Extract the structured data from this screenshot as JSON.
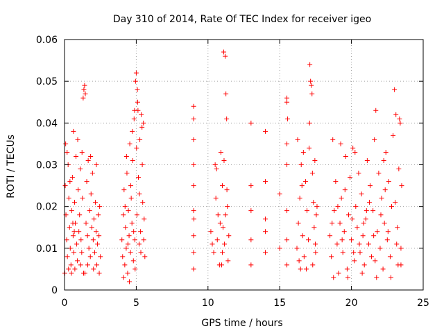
{
  "chart_data": {
    "type": "scatter",
    "title": "Day 310 of 2014, Rate Of TEC Index for receiver igeo",
    "xlabel": "GPS time / hours",
    "ylabel": "ROTI / TECUs",
    "xlim": [
      0,
      25
    ],
    "ylim": [
      0,
      0.06
    ],
    "x_ticks": [
      0,
      5,
      10,
      15,
      20,
      25
    ],
    "x_tick_labels": [
      "0",
      "5",
      "10",
      "15",
      "20",
      "25"
    ],
    "y_ticks": [
      0,
      0.01,
      0.02,
      0.03,
      0.04,
      0.05,
      0.06
    ],
    "y_tick_labels": [
      "0",
      "0.01",
      "0.02",
      "0.03",
      "0.04",
      "0.05",
      "0.06"
    ],
    "grid": true,
    "marker": "+",
    "marker_color": "#ff0000",
    "series": [
      {
        "name": "ROTI",
        "points": [
          [
            0.05,
            0.025
          ],
          [
            0.1,
            0.018
          ],
          [
            0.15,
            0.012
          ],
          [
            0.2,
            0.008
          ],
          [
            0.25,
            0.03
          ],
          [
            0.3,
            0.022
          ],
          [
            0.35,
            0.015
          ],
          [
            0.4,
            0.01
          ],
          [
            0.45,
            0.006
          ],
          [
            0.5,
            0.019
          ],
          [
            0.55,
            0.027
          ],
          [
            0.6,
            0.013
          ],
          [
            0.65,
            0.009
          ],
          [
            0.7,
            0.021
          ],
          [
            0.75,
            0.016
          ],
          [
            0.8,
            0.032
          ],
          [
            0.85,
            0.011
          ],
          [
            0.9,
            0.007
          ],
          [
            0.95,
            0.024
          ],
          [
            1.0,
            0.014
          ],
          [
            1.05,
            0.018
          ],
          [
            1.1,
            0.029
          ],
          [
            1.15,
            0.012
          ],
          [
            1.2,
            0.009
          ],
          [
            1.25,
            0.022
          ],
          [
            1.3,
            0.046
          ],
          [
            1.35,
            0.048
          ],
          [
            1.4,
            0.049
          ],
          [
            1.45,
            0.047
          ],
          [
            1.5,
            0.016
          ],
          [
            1.55,
            0.026
          ],
          [
            1.6,
            0.013
          ],
          [
            1.65,
            0.031
          ],
          [
            1.7,
            0.01
          ],
          [
            1.75,
            0.019
          ],
          [
            1.8,
            0.008
          ],
          [
            1.85,
            0.023
          ],
          [
            1.9,
            0.015
          ],
          [
            1.95,
            0.028
          ],
          [
            2.0,
            0.012
          ],
          [
            2.05,
            0.017
          ],
          [
            2.1,
            0.009
          ],
          [
            2.15,
            0.021
          ],
          [
            2.2,
            0.014
          ],
          [
            2.25,
            0.006
          ],
          [
            2.3,
            0.011
          ],
          [
            2.35,
            0.018
          ],
          [
            2.4,
            0.013
          ],
          [
            2.45,
            0.02
          ],
          [
            2.5,
            0.008
          ],
          [
            0.02,
            0.004
          ],
          [
            0.08,
            0.035
          ],
          [
            0.18,
            0.033
          ],
          [
            0.28,
            0.005
          ],
          [
            0.38,
            0.026
          ],
          [
            0.48,
            0.004
          ],
          [
            0.62,
            0.038
          ],
          [
            0.72,
            0.005
          ],
          [
            0.92,
            0.036
          ],
          [
            1.12,
            0.006
          ],
          [
            1.22,
            0.033
          ],
          [
            1.42,
            0.004
          ],
          [
            1.62,
            0.006
          ],
          [
            1.82,
            0.032
          ],
          [
            2.02,
            0.005
          ],
          [
            2.22,
            0.03
          ],
          [
            2.42,
            0.004
          ],
          [
            1.33,
            0.004
          ],
          [
            0.58,
            0.016
          ],
          [
            0.68,
            0.014
          ],
          [
            4.0,
            0.012
          ],
          [
            4.05,
            0.008
          ],
          [
            4.1,
            0.018
          ],
          [
            4.15,
            0.024
          ],
          [
            4.2,
            0.006
          ],
          [
            4.25,
            0.015
          ],
          [
            4.3,
            0.01
          ],
          [
            4.35,
            0.028
          ],
          [
            4.4,
            0.004
          ],
          [
            4.45,
            0.019
          ],
          [
            4.5,
            0.013
          ],
          [
            4.55,
            0.035
          ],
          [
            4.6,
            0.009
          ],
          [
            4.65,
            0.022
          ],
          [
            4.7,
            0.016
          ],
          [
            4.75,
            0.031
          ],
          [
            4.8,
            0.007
          ],
          [
            4.85,
            0.041
          ],
          [
            4.9,
            0.012
          ],
          [
            4.95,
            0.05
          ],
          [
            5.0,
            0.052
          ],
          [
            5.05,
            0.018
          ],
          [
            5.1,
            0.045
          ],
          [
            5.15,
            0.027
          ],
          [
            5.2,
            0.011
          ],
          [
            5.25,
            0.036
          ],
          [
            5.3,
            0.014
          ],
          [
            5.35,
            0.042
          ],
          [
            5.4,
            0.039
          ],
          [
            5.45,
            0.021
          ],
          [
            5.5,
            0.04
          ],
          [
            5.55,
            0.017
          ],
          [
            5.6,
            0.008
          ],
          [
            4.12,
            0.003
          ],
          [
            4.32,
            0.032
          ],
          [
            4.52,
            0.002
          ],
          [
            4.72,
            0.038
          ],
          [
            4.92,
            0.005
          ],
          [
            5.12,
            0.043
          ],
          [
            5.32,
            0.009
          ],
          [
            4.22,
            0.02
          ],
          [
            4.42,
            0.011
          ],
          [
            4.62,
            0.025
          ],
          [
            4.82,
            0.014
          ],
          [
            5.02,
            0.034
          ],
          [
            5.22,
            0.023
          ],
          [
            5.42,
            0.03
          ],
          [
            5.52,
            0.012
          ],
          [
            4.88,
            0.043
          ],
          [
            5.08,
            0.048
          ],
          [
            9.0,
            0.044
          ],
          [
            9.0,
            0.041
          ],
          [
            9.0,
            0.036
          ],
          [
            9.0,
            0.03
          ],
          [
            9.0,
            0.025
          ],
          [
            9.0,
            0.019
          ],
          [
            9.0,
            0.013
          ],
          [
            9.0,
            0.009
          ],
          [
            9.0,
            0.005
          ],
          [
            9.02,
            0.017
          ],
          [
            10.2,
            0.014
          ],
          [
            10.3,
            0.011
          ],
          [
            10.4,
            0.009
          ],
          [
            10.5,
            0.03
          ],
          [
            10.6,
            0.029
          ],
          [
            10.7,
            0.018
          ],
          [
            10.8,
            0.006
          ],
          [
            10.9,
            0.033
          ],
          [
            11.0,
            0.025
          ],
          [
            11.05,
            0.015
          ],
          [
            11.1,
            0.057
          ],
          [
            11.15,
            0.011
          ],
          [
            11.2,
            0.056
          ],
          [
            11.25,
            0.047
          ],
          [
            11.3,
            0.041
          ],
          [
            11.35,
            0.02
          ],
          [
            11.4,
            0.007
          ],
          [
            11.45,
            0.013
          ],
          [
            10.55,
            0.022
          ],
          [
            10.95,
            0.006
          ],
          [
            11.12,
            0.031
          ],
          [
            11.22,
            0.018
          ],
          [
            11.32,
            0.024
          ],
          [
            10.65,
            0.012
          ],
          [
            10.85,
            0.016
          ],
          [
            11.0,
            0.009
          ],
          [
            13.0,
            0.04
          ],
          [
            13.0,
            0.025
          ],
          [
            13.0,
            0.019
          ],
          [
            13.0,
            0.012
          ],
          [
            13.0,
            0.006
          ],
          [
            14.0,
            0.038
          ],
          [
            14.0,
            0.026
          ],
          [
            14.0,
            0.017
          ],
          [
            14.0,
            0.009
          ],
          [
            14.0,
            0.014
          ],
          [
            15.0,
            0.023
          ],
          [
            15.0,
            0.01
          ],
          [
            15.5,
            0.046
          ],
          [
            15.5,
            0.045
          ],
          [
            15.55,
            0.041
          ],
          [
            15.5,
            0.035
          ],
          [
            15.5,
            0.03
          ],
          [
            15.5,
            0.019
          ],
          [
            15.5,
            0.012
          ],
          [
            15.5,
            0.006
          ],
          [
            16.2,
            0.01
          ],
          [
            16.3,
            0.016
          ],
          [
            16.4,
            0.022
          ],
          [
            16.5,
            0.03
          ],
          [
            16.6,
            0.013
          ],
          [
            16.7,
            0.008
          ],
          [
            16.8,
            0.026
          ],
          [
            16.9,
            0.019
          ],
          [
            17.0,
            0.012
          ],
          [
            17.05,
            0.034
          ],
          [
            17.1,
            0.054
          ],
          [
            17.15,
            0.05
          ],
          [
            17.2,
            0.049
          ],
          [
            17.25,
            0.047
          ],
          [
            17.3,
            0.006
          ],
          [
            17.35,
            0.021
          ],
          [
            17.4,
            0.015
          ],
          [
            17.45,
            0.031
          ],
          [
            17.5,
            0.009
          ],
          [
            17.55,
            0.018
          ],
          [
            16.25,
            0.036
          ],
          [
            16.45,
            0.005
          ],
          [
            16.65,
            0.033
          ],
          [
            16.85,
            0.005
          ],
          [
            17.08,
            0.04
          ],
          [
            17.28,
            0.028
          ],
          [
            17.48,
            0.011
          ],
          [
            17.6,
            0.02
          ],
          [
            16.35,
            0.007
          ],
          [
            16.55,
            0.025
          ],
          [
            18.5,
            0.013
          ],
          [
            18.6,
            0.008
          ],
          [
            18.7,
            0.036
          ],
          [
            18.8,
            0.019
          ],
          [
            18.9,
            0.026
          ],
          [
            19.0,
            0.011
          ],
          [
            19.1,
            0.004
          ],
          [
            19.2,
            0.016
          ],
          [
            19.3,
            0.022
          ],
          [
            19.4,
            0.009
          ],
          [
            19.5,
            0.014
          ],
          [
            19.6,
            0.032
          ],
          [
            19.7,
            0.005
          ],
          [
            19.8,
            0.018
          ],
          [
            19.9,
            0.027
          ],
          [
            20.0,
            0.012
          ],
          [
            20.1,
            0.034
          ],
          [
            20.2,
            0.007
          ],
          [
            20.3,
            0.02
          ],
          [
            20.4,
            0.015
          ],
          [
            20.5,
            0.028
          ],
          [
            20.6,
            0.009
          ],
          [
            20.7,
            0.023
          ],
          [
            20.8,
            0.013
          ],
          [
            20.9,
            0.006
          ],
          [
            21.0,
            0.017
          ],
          [
            21.1,
            0.031
          ],
          [
            21.2,
            0.011
          ],
          [
            21.3,
            0.025
          ],
          [
            21.4,
            0.008
          ],
          [
            21.5,
            0.019
          ],
          [
            21.6,
            0.036
          ],
          [
            21.7,
            0.043
          ],
          [
            21.8,
            0.014
          ],
          [
            21.9,
            0.028
          ],
          [
            22.0,
            0.01
          ],
          [
            22.1,
            0.022
          ],
          [
            22.2,
            0.005
          ],
          [
            22.3,
            0.016
          ],
          [
            22.4,
            0.033
          ],
          [
            22.5,
            0.012
          ],
          [
            22.6,
            0.026
          ],
          [
            22.7,
            0.008
          ],
          [
            22.8,
            0.02
          ],
          [
            22.9,
            0.037
          ],
          [
            23.0,
            0.048
          ],
          [
            23.1,
            0.042
          ],
          [
            23.2,
            0.015
          ],
          [
            23.3,
            0.029
          ],
          [
            23.35,
            0.041
          ],
          [
            23.4,
            0.04
          ],
          [
            23.45,
            0.01
          ],
          [
            23.5,
            0.025
          ],
          [
            18.75,
            0.003
          ],
          [
            19.25,
            0.035
          ],
          [
            19.75,
            0.003
          ],
          [
            20.25,
            0.033
          ],
          [
            20.75,
            0.004
          ],
          [
            21.25,
            0.021
          ],
          [
            21.75,
            0.003
          ],
          [
            22.25,
            0.031
          ],
          [
            22.75,
            0.003
          ],
          [
            23.25,
            0.006
          ],
          [
            19.05,
            0.02
          ],
          [
            19.55,
            0.024
          ],
          [
            20.05,
            0.017
          ],
          [
            20.55,
            0.011
          ],
          [
            21.05,
            0.019
          ],
          [
            21.55,
            0.013
          ],
          [
            22.05,
            0.018
          ],
          [
            22.55,
            0.014
          ],
          [
            23.05,
            0.021
          ],
          [
            23.45,
            0.006
          ],
          [
            18.65,
            0.016
          ],
          [
            20.15,
            0.009
          ],
          [
            21.65,
            0.007
          ],
          [
            22.35,
            0.024
          ],
          [
            23.15,
            0.011
          ],
          [
            19.35,
            0.012
          ],
          [
            20.85,
            0.016
          ]
        ]
      }
    ]
  }
}
